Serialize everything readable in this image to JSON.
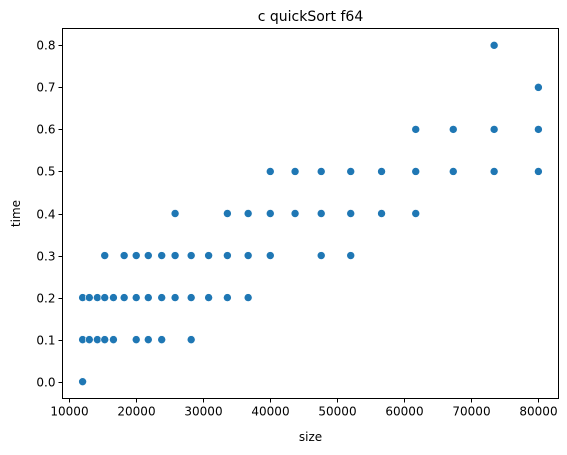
{
  "chart_data": {
    "type": "scatter",
    "title": "c quickSort f64",
    "xlabel": "size",
    "ylabel": "time",
    "xlim": [
      9000,
      83000
    ],
    "ylim": [
      -0.04,
      0.84
    ],
    "xticks": [
      {
        "value": 10000,
        "label": "10000"
      },
      {
        "value": 20000,
        "label": "20000"
      },
      {
        "value": 30000,
        "label": "30000"
      },
      {
        "value": 40000,
        "label": "40000"
      },
      {
        "value": 50000,
        "label": "50000"
      },
      {
        "value": 60000,
        "label": "60000"
      },
      {
        "value": 70000,
        "label": "70000"
      },
      {
        "value": 80000,
        "label": "80000"
      }
    ],
    "yticks": [
      {
        "value": 0.0,
        "label": "0.0"
      },
      {
        "value": 0.1,
        "label": "0.1"
      },
      {
        "value": 0.2,
        "label": "0.2"
      },
      {
        "value": 0.3,
        "label": "0.3"
      },
      {
        "value": 0.4,
        "label": "0.4"
      },
      {
        "value": 0.5,
        "label": "0.5"
      },
      {
        "value": 0.6,
        "label": "0.6"
      },
      {
        "value": 0.7,
        "label": "0.7"
      },
      {
        "value": 0.8,
        "label": "0.8"
      }
    ],
    "grid": false,
    "marker_color": "#1f77b4",
    "points": [
      [
        12000,
        0.0
      ],
      [
        12000,
        0.1
      ],
      [
        12000,
        0.2
      ],
      [
        13000,
        0.1
      ],
      [
        13000,
        0.2
      ],
      [
        14200,
        0.1
      ],
      [
        14200,
        0.2
      ],
      [
        15300,
        0.1
      ],
      [
        15300,
        0.2
      ],
      [
        15300,
        0.3
      ],
      [
        16600,
        0.1
      ],
      [
        16600,
        0.2
      ],
      [
        18200,
        0.2
      ],
      [
        18200,
        0.3
      ],
      [
        20000,
        0.1
      ],
      [
        20000,
        0.2
      ],
      [
        20000,
        0.3
      ],
      [
        21800,
        0.1
      ],
      [
        21800,
        0.2
      ],
      [
        21800,
        0.3
      ],
      [
        23800,
        0.1
      ],
      [
        23800,
        0.2
      ],
      [
        23800,
        0.3
      ],
      [
        25800,
        0.2
      ],
      [
        25800,
        0.3
      ],
      [
        25800,
        0.4
      ],
      [
        28200,
        0.1
      ],
      [
        28200,
        0.2
      ],
      [
        28200,
        0.3
      ],
      [
        30800,
        0.2
      ],
      [
        30800,
        0.3
      ],
      [
        33600,
        0.2
      ],
      [
        33600,
        0.3
      ],
      [
        33600,
        0.4
      ],
      [
        36700,
        0.2
      ],
      [
        36700,
        0.3
      ],
      [
        36700,
        0.4
      ],
      [
        40000,
        0.3
      ],
      [
        40000,
        0.4
      ],
      [
        40000,
        0.5
      ],
      [
        43700,
        0.4
      ],
      [
        43700,
        0.5
      ],
      [
        47600,
        0.3
      ],
      [
        47600,
        0.4
      ],
      [
        47600,
        0.5
      ],
      [
        52000,
        0.3
      ],
      [
        52000,
        0.4
      ],
      [
        52000,
        0.5
      ],
      [
        56600,
        0.4
      ],
      [
        56600,
        0.5
      ],
      [
        61700,
        0.4
      ],
      [
        61700,
        0.5
      ],
      [
        61700,
        0.6
      ],
      [
        67300,
        0.5
      ],
      [
        67300,
        0.6
      ],
      [
        73400,
        0.5
      ],
      [
        73400,
        0.6
      ],
      [
        73400,
        0.8
      ],
      [
        80000,
        0.5
      ],
      [
        80000,
        0.6
      ],
      [
        80000,
        0.7
      ]
    ]
  }
}
